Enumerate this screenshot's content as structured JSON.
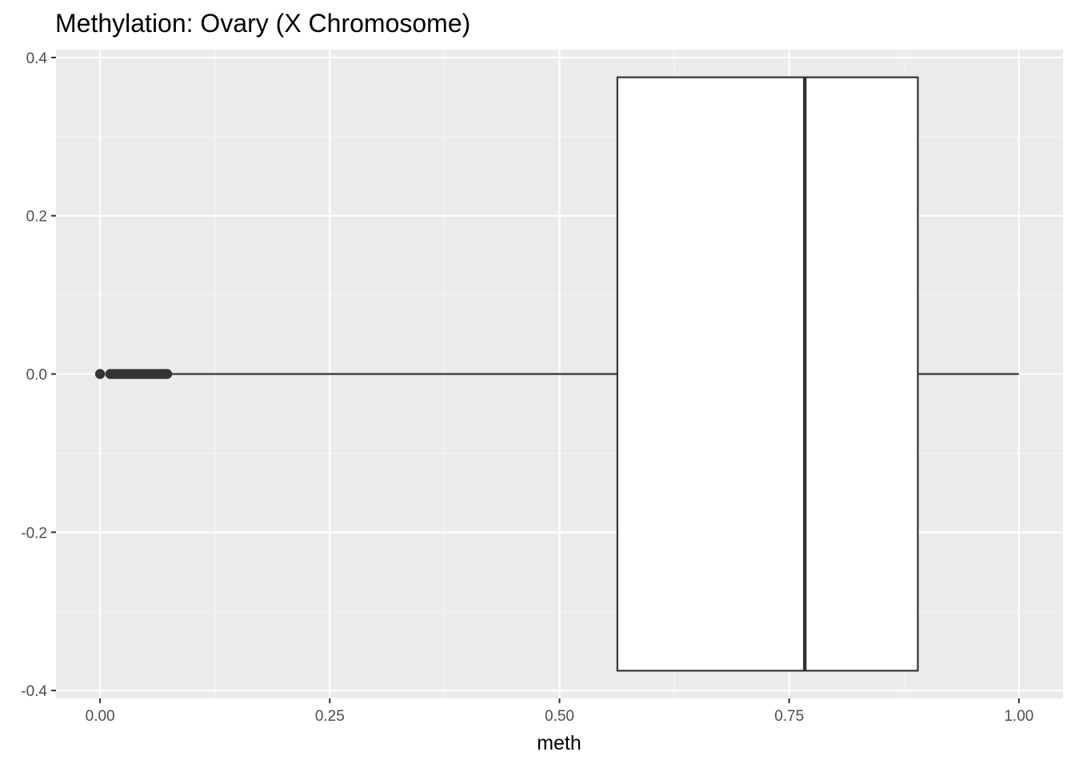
{
  "chart_data": {
    "type": "boxplot",
    "title": "Methylation: Ovary (X Chromosome)",
    "xlabel": "meth",
    "ylabel": "",
    "xlim": [
      -0.048,
      1.048
    ],
    "ylim": [
      -0.41,
      0.41
    ],
    "x_ticks": [
      {
        "value": 0.0,
        "label": "0.00"
      },
      {
        "value": 0.25,
        "label": "0.25"
      },
      {
        "value": 0.5,
        "label": "0.50"
      },
      {
        "value": 0.75,
        "label": "0.75"
      },
      {
        "value": 1.0,
        "label": "1.00"
      }
    ],
    "y_ticks": [
      {
        "value": 0.4,
        "label": "0.4"
      },
      {
        "value": 0.2,
        "label": "0.2"
      },
      {
        "value": 0.0,
        "label": "0.0"
      },
      {
        "value": -0.2,
        "label": "-0.2"
      },
      {
        "value": -0.4,
        "label": "-0.4"
      }
    ],
    "box": {
      "whisker_low": 0.073,
      "q1": 0.563,
      "median": 0.767,
      "q3": 0.89,
      "whisker_high": 1.0,
      "y_center": 0.0,
      "half_width": 0.375
    },
    "outliers": [
      0.0,
      0.011,
      0.014,
      0.017,
      0.02,
      0.023,
      0.026,
      0.029,
      0.032,
      0.035,
      0.038,
      0.041,
      0.044,
      0.047,
      0.05,
      0.053,
      0.056,
      0.059,
      0.062,
      0.065,
      0.068,
      0.071,
      0.073
    ],
    "grid": true,
    "colors": {
      "panel_background": "#ebebeb",
      "grid_major": "#ffffff",
      "grid_minor": "#f5f5f5",
      "box_fill": "#ffffff",
      "box_stroke": "#333333",
      "outlier": "#333333",
      "tick_label": "#4d4d4d",
      "tick_mark": "#333333",
      "text": "#000000"
    }
  }
}
